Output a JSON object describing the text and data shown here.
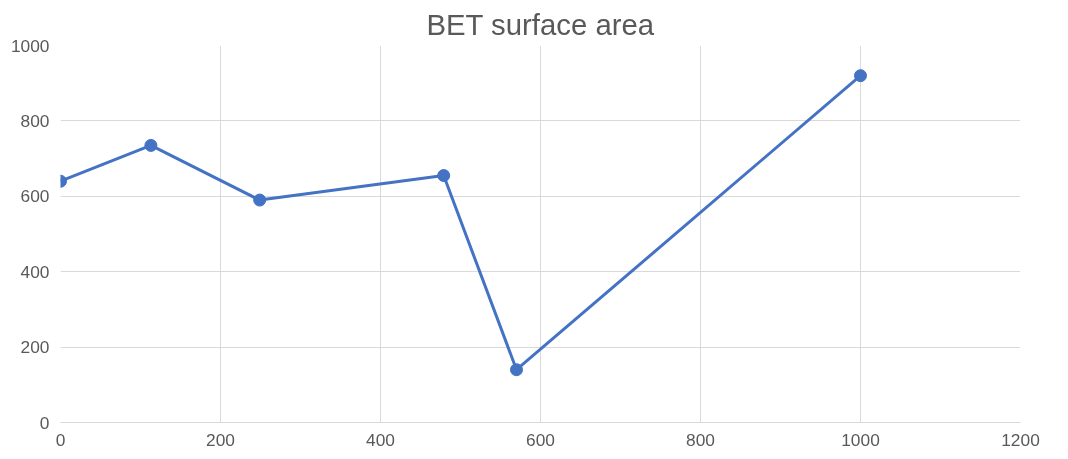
{
  "chart_data": {
    "type": "line",
    "title": "BET surface area",
    "x": [
      0,
      113,
      249,
      479,
      570,
      1000
    ],
    "series": [
      {
        "color": "#4472c4",
        "values": [
          640,
          735,
          590,
          655,
          140,
          920
        ]
      }
    ],
    "xlim": [
      0,
      1200
    ],
    "xticks": [
      0,
      200,
      400,
      600,
      800,
      1000,
      1200
    ],
    "ylim": [
      0,
      1000
    ],
    "yticks": [
      0,
      200,
      400,
      600,
      800,
      1000
    ],
    "grid": true,
    "marker": "circle",
    "line_style": "solid"
  }
}
